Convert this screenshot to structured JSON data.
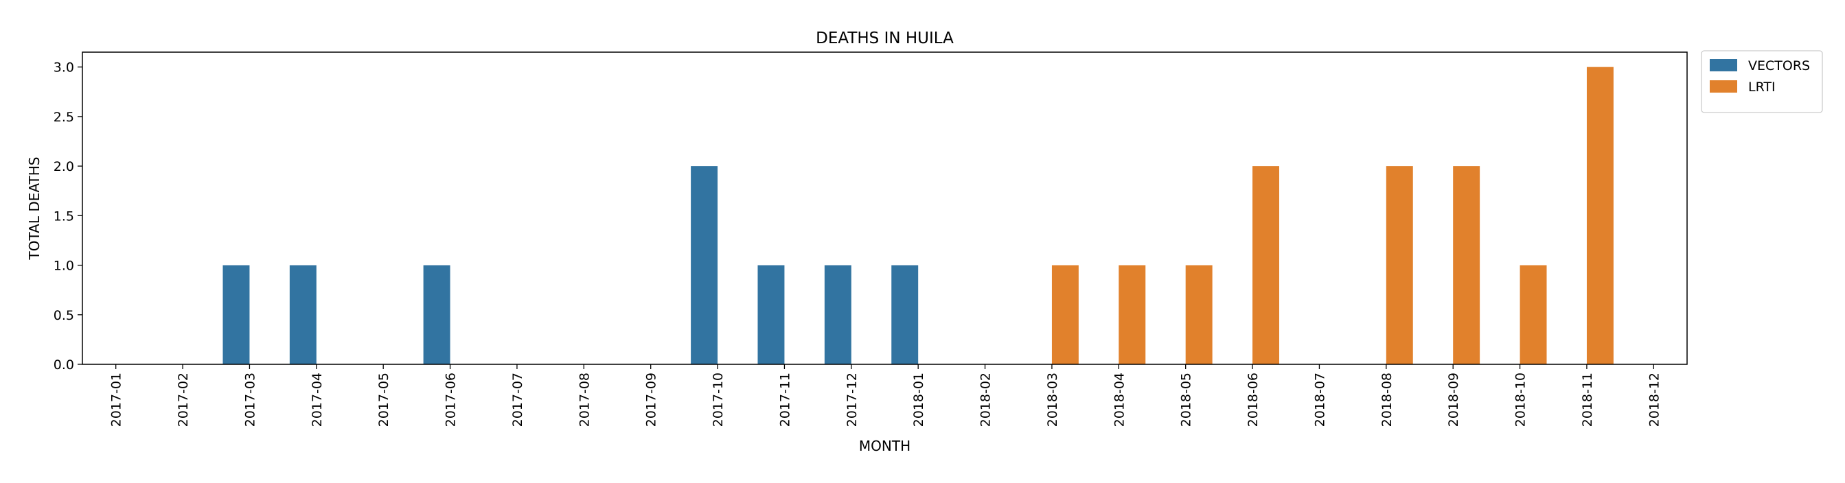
{
  "chart_data": {
    "type": "bar",
    "title": "DEATHS IN HUILA",
    "xlabel": "MONTH",
    "ylabel": "TOTAL DEATHS",
    "ylim": [
      0,
      3.15
    ],
    "yticks": [
      "0.0",
      "0.5",
      "1.0",
      "1.5",
      "2.0",
      "2.5",
      "3.0"
    ],
    "categories": [
      "2017-01",
      "2017-02",
      "2017-03",
      "2017-04",
      "2017-05",
      "2017-06",
      "2017-07",
      "2017-08",
      "2017-09",
      "2017-10",
      "2017-11",
      "2017-12",
      "2018-01",
      "2018-02",
      "2018-03",
      "2018-04",
      "2018-05",
      "2018-06",
      "2018-07",
      "2018-08",
      "2018-09",
      "2018-10",
      "2018-11",
      "2018-12"
    ],
    "series": [
      {
        "name": "VECTORS",
        "color": "#3274a1",
        "values": [
          0,
          0,
          1,
          1,
          0,
          1,
          0,
          0,
          0,
          2,
          1,
          1,
          1,
          0,
          0,
          0,
          0,
          0,
          0,
          0,
          0,
          0,
          0,
          0
        ]
      },
      {
        "name": "LRTI",
        "color": "#e1812c",
        "values": [
          0,
          0,
          0,
          0,
          0,
          0,
          0,
          0,
          0,
          0,
          0,
          0,
          0,
          0,
          1,
          1,
          1,
          2,
          0,
          2,
          2,
          1,
          3,
          0
        ]
      }
    ],
    "legend_position": "outside top-right",
    "grid": false
  }
}
